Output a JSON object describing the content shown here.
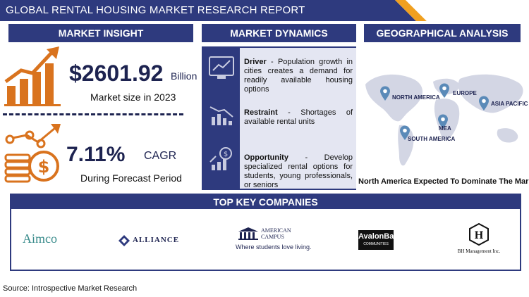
{
  "header": {
    "title": "GLOBAL RENTAL HOUSING MARKET RESEARCH REPORT"
  },
  "sections": {
    "insight": "MARKET INSIGHT",
    "dynamics": "MARKET DYNAMICS",
    "geo": "GEOGRAPHICAL ANALYSIS"
  },
  "insight": {
    "market_size_value": "$2601.92",
    "market_size_unit": "Billion",
    "market_size_label": "Market size in 2023",
    "cagr_value": "7.11%",
    "cagr_unit": "CAGR",
    "cagr_label": "During Forecast Period"
  },
  "dynamics": {
    "driver_title": "Driver",
    "driver_text": " - Population growth in cities creates a demand for readily available housing options",
    "restraint_title": "Restraint",
    "restraint_text": " - Shortages of available rental units",
    "opportunity_title": "Opportunity",
    "opportunity_text": " - Develop specialized rental options for students, young professionals, or seniors"
  },
  "geo": {
    "regions": [
      "NORTH AMERICA",
      "EUROPE",
      "ASIA PACIFIC",
      "MEA",
      "SOUTH AMERICA"
    ],
    "note": "North America Expected To Dominate The Market"
  },
  "companies": {
    "heading": "TOP KEY COMPANIES",
    "aimco": "Aimco",
    "alliance": "ALLIANCE",
    "acc_line1": "AMERICAN",
    "acc_line2": "CAMPUS",
    "acc_tagline": "Where students love living.",
    "avalonbay": "AvalonBay",
    "avalonbay_sub": "COMMUNITIES",
    "bh_letter": "H",
    "bh_name": "BH Management Inc."
  },
  "footer": {
    "source": "Source: Introspective Market Research"
  },
  "colors": {
    "navy": "#2e3a7e",
    "orange": "#d9731e",
    "light": "#e4e6f2"
  },
  "icons": [
    "growth-chart-icon",
    "coin-growth-icon",
    "driver-icon",
    "restraint-icon",
    "opportunity-icon",
    "location-pin-icon"
  ]
}
